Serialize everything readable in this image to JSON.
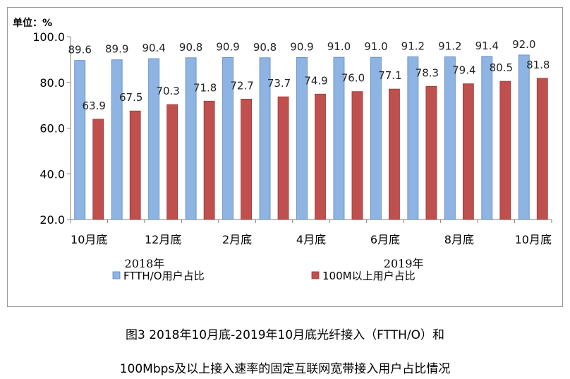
{
  "chart_data": {
    "type": "bar",
    "unit_label": "单位：%",
    "ylim": [
      20.0,
      100.0
    ],
    "yticks": [
      "100.0",
      "80.0",
      "60.0",
      "40.0",
      "20.0"
    ],
    "ytick_values": [
      100,
      80,
      60,
      40,
      20
    ],
    "categories": [
      "2018-10",
      "2018-11",
      "2018-12",
      "2019-01",
      "2019-02",
      "2019-03",
      "2019-04",
      "2019-05",
      "2019-06",
      "2019-07",
      "2019-08",
      "2019-09",
      "2019-10"
    ],
    "x_tick_labels": [
      {
        "index": 0,
        "label": "10月底"
      },
      {
        "index": 2,
        "label": "12月底"
      },
      {
        "index": 4,
        "label": "2月底"
      },
      {
        "index": 6,
        "label": "4月底"
      },
      {
        "index": 8,
        "label": "6月底"
      },
      {
        "index": 10,
        "label": "8月底"
      },
      {
        "index": 12,
        "label": "10月底"
      }
    ],
    "year_labels": [
      {
        "label": "2018年",
        "index": 1.5
      },
      {
        "label": "2019年",
        "index": 8.5
      }
    ],
    "series": [
      {
        "name": "FTTH/O用户占比",
        "color": "#8db4e2",
        "stroke": "#5b86c0",
        "values": [
          89.6,
          89.9,
          90.4,
          90.8,
          90.9,
          90.8,
          90.9,
          91.0,
          91.0,
          91.2,
          91.2,
          91.4,
          92.0
        ]
      },
      {
        "name": "100M以上用户占比",
        "color": "#c0504d",
        "stroke": "#9b3936",
        "values": [
          63.9,
          67.5,
          70.3,
          71.8,
          72.7,
          73.7,
          74.9,
          76.0,
          77.1,
          78.3,
          79.4,
          80.5,
          81.8
        ]
      }
    ],
    "legend_position": "bottom",
    "grid": false
  },
  "caption": {
    "line1": "图3  2018年10月底-2019年10月底光纤接入（FTTH/O）和",
    "line2": "100Mbps及以上接入速率的固定互联网宽带接入用户占比情况"
  }
}
